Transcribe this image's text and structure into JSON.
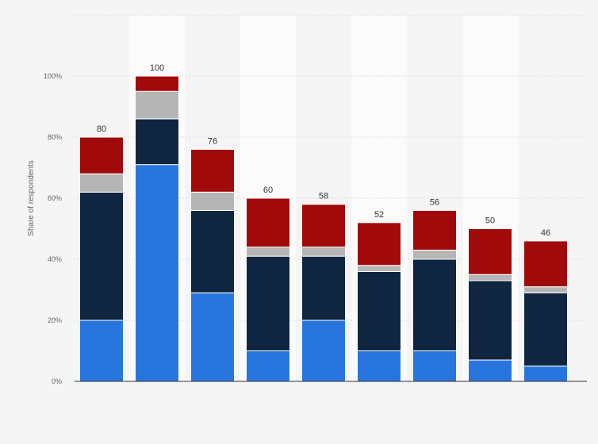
{
  "chart_data": {
    "type": "bar",
    "stacked": true,
    "title": "",
    "xlabel": "",
    "ylabel": "Share of respondents",
    "ylim": [
      0,
      120
    ],
    "yticks": [
      {
        "value": 0,
        "label": "0%"
      },
      {
        "value": 20,
        "label": "20%"
      },
      {
        "value": 40,
        "label": "40%"
      },
      {
        "value": 60,
        "label": "60%"
      },
      {
        "value": 80,
        "label": "80%"
      },
      {
        "value": 100,
        "label": "100%"
      }
    ],
    "grid": true,
    "legend": "none",
    "categories": [
      "",
      "",
      "",
      "",
      "",
      "",
      "",
      "",
      ""
    ],
    "totals": [
      80,
      100,
      76,
      60,
      58,
      52,
      56,
      50,
      46
    ],
    "total_labels": [
      "80",
      "100",
      "76",
      "60",
      "58",
      "52",
      "56",
      "50",
      "46"
    ],
    "series": [
      {
        "color": "#2876dd",
        "values": [
          20,
          71,
          29,
          10,
          20,
          10,
          10,
          7,
          5
        ]
      },
      {
        "color": "#10253f",
        "values": [
          42,
          15,
          27,
          31,
          21,
          26,
          30,
          26,
          24
        ]
      },
      {
        "color": "#b5b5b5",
        "values": [
          6,
          9,
          6,
          3,
          3,
          2,
          3,
          2,
          2
        ]
      },
      {
        "color": "#a10a0a",
        "values": [
          12,
          5,
          14,
          16,
          14,
          14,
          13,
          15,
          15
        ]
      }
    ]
  }
}
